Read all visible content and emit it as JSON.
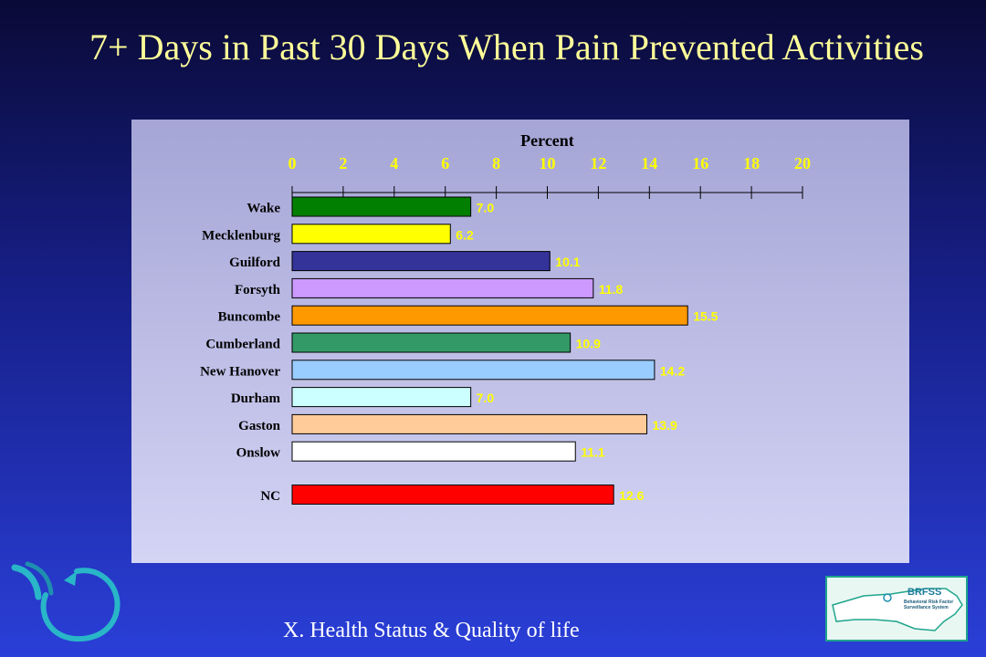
{
  "title": "7+ Days in Past 30 Days When Pain Prevented Activities",
  "footer": "X. Health Status & Quality of life",
  "brfss_logo": {
    "word": "BRFSS",
    "subtitle": "Behavioral Risk Factor Surveillance System"
  },
  "chart_data": {
    "type": "bar",
    "orientation": "horizontal",
    "xlabel": "Percent",
    "xlim": [
      0,
      20
    ],
    "ticks": [
      "0",
      "2",
      "4",
      "6",
      "8",
      "10",
      "12",
      "14",
      "16",
      "18",
      "20"
    ],
    "categories": [
      "Wake",
      "Mecklenburg",
      "Guilford",
      "Forsyth",
      "Buncombe",
      "Cumberland",
      "New Hanover",
      "Durham",
      "Gaston",
      "Onslow",
      "NC"
    ],
    "values": [
      7.0,
      6.2,
      10.1,
      11.8,
      15.5,
      10.9,
      14.2,
      7.0,
      13.9,
      11.1,
      12.6
    ],
    "labels": [
      "7.0",
      "6.2",
      "10.1",
      "11.8",
      "15.5",
      "10.9",
      "14.2",
      "7.0",
      "13.9",
      "11.1",
      "12.6"
    ],
    "colors": [
      "#007f00",
      "#ffff00",
      "#333399",
      "#cc99ff",
      "#ff9900",
      "#339966",
      "#99ccff",
      "#ccffff",
      "#ffcc99",
      "#ffffff",
      "#ff0000"
    ],
    "label_color": "#ffff00",
    "axis_position": "top"
  }
}
